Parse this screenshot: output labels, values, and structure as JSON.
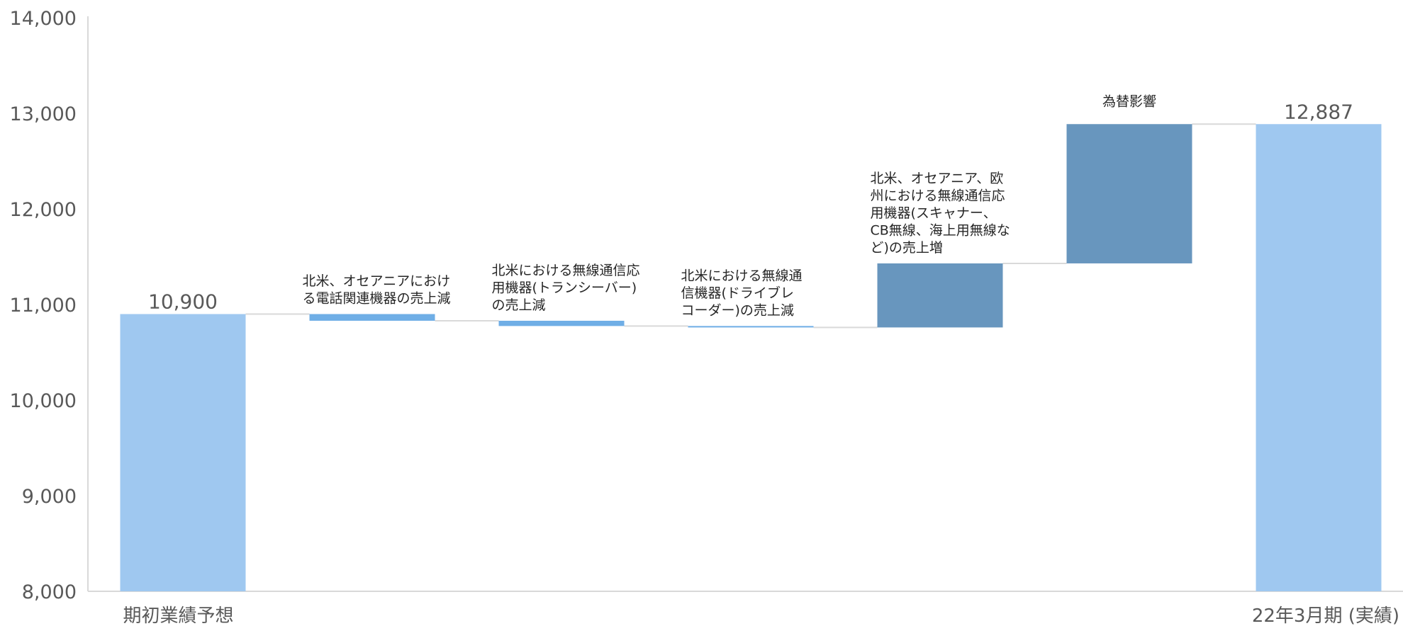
{
  "chart_data": {
    "type": "bar",
    "subtype": "waterfall",
    "title": "",
    "xlabel": "",
    "ylabel": "",
    "ylim": [
      8000,
      14000
    ],
    "yticks": [
      8000,
      9000,
      10000,
      11000,
      12000,
      13000,
      14000
    ],
    "ytick_labels": [
      "8,000",
      "9,000",
      "10,000",
      "11,000",
      "12,000",
      "13,000",
      "14,000"
    ],
    "grid": false,
    "legend": "none",
    "colors": {
      "total": "#9fc8f0",
      "decrease": "#6faee6",
      "increase": "#6896be",
      "connector": "#d9d9d9",
      "axis": "#d9d9d9"
    },
    "steps": [
      {
        "category": "期初業績予想",
        "kind": "total",
        "start": 8000,
        "end": 10900,
        "value_label": "10,900",
        "annotation_lines": []
      },
      {
        "category": "",
        "kind": "decrease",
        "start": 10900,
        "end": 10830,
        "value_label": "",
        "annotation_lines": [
          "北米、オセアニアにおけ",
          "る電話関連機器の売上減"
        ]
      },
      {
        "category": "",
        "kind": "decrease",
        "start": 10830,
        "end": 10775,
        "value_label": "",
        "annotation_lines": [
          "北米における無線通信応",
          "用機器(トランシーバー)",
          "の売上減"
        ]
      },
      {
        "category": "",
        "kind": "decrease",
        "start": 10775,
        "end": 10760,
        "value_label": "",
        "annotation_lines": [
          "北米における無線通",
          "信機器(ドライブレ",
          "コーダー)の売上減"
        ]
      },
      {
        "category": "",
        "kind": "increase",
        "start": 10760,
        "end": 11430,
        "value_label": "",
        "annotation_lines": [
          "北米、オセアニア、欧",
          "州における無線通信応",
          "用機器(スキャナー、",
          "CB無線、海上用無線な",
          "ど)の売上増"
        ]
      },
      {
        "category": "",
        "kind": "increase",
        "start": 11430,
        "end": 12887,
        "value_label": "",
        "annotation_lines": [
          "為替影響"
        ]
      },
      {
        "category": "22年3月期 (実績)",
        "kind": "total",
        "start": 8000,
        "end": 12887,
        "value_label": "12,887",
        "annotation_lines": []
      }
    ]
  }
}
